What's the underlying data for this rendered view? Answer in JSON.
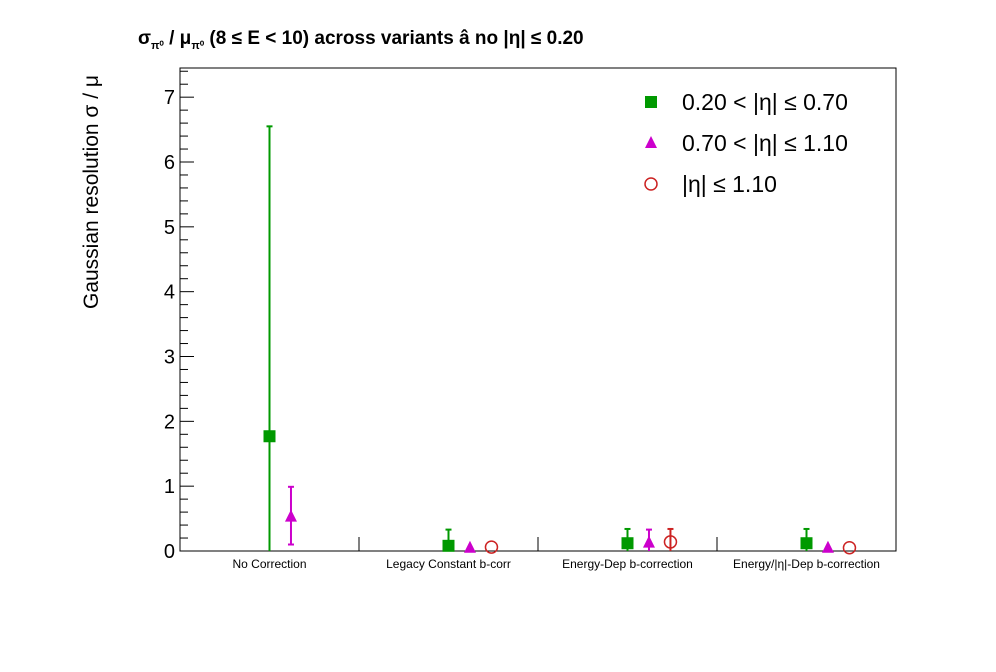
{
  "title": {
    "main": "σ",
    "sub1": "π⁰",
    "slash": " / μ",
    "sub2": "π⁰",
    "rest": " (8 ≤ E < 10) across variants  â  no |η| ≤ 0.20"
  },
  "colors": {
    "series1": "#009900",
    "series2": "#cc00cc",
    "series3": "#cc2222",
    "axis": "#000000"
  },
  "chart_data": {
    "type": "scatter",
    "title": "σπ⁰ / μπ⁰ (8 ≤ E < 10) across variants  â  no |η| ≤ 0.20",
    "xlabel": "",
    "ylabel": "Gaussian resolution  σ / μ",
    "ylim": [
      0,
      7.45
    ],
    "yticks": [
      "0",
      "1",
      "2",
      "3",
      "4",
      "5",
      "6",
      "7"
    ],
    "categories": [
      "No Correction",
      "Legacy Constant b-corr",
      "Energy-Dep b-correction",
      "Energy/|η|-Dep b-correction"
    ],
    "legend_position": "top-right",
    "grid": false,
    "series": [
      {
        "name": "0.20 < |η| ≤ 0.70",
        "marker": "square",
        "values": [
          1.77,
          0.08,
          0.12,
          0.12
        ],
        "err_low": [
          1.77,
          0.08,
          0.12,
          0.12
        ],
        "err_high": [
          4.78,
          0.25,
          0.22,
          0.22
        ]
      },
      {
        "name": "0.70 < |η| ≤ 1.10",
        "marker": "triangle",
        "values": [
          0.53,
          0.05,
          0.13,
          0.05
        ],
        "err_low": [
          0.43,
          0.0,
          0.13,
          0.0
        ],
        "err_high": [
          0.46,
          0.0,
          0.2,
          0.0
        ]
      },
      {
        "name": "|η| ≤ 1.10",
        "marker": "circle-open",
        "values": [
          null,
          0.06,
          0.14,
          0.05
        ],
        "err_low": [
          null,
          0.0,
          0.14,
          0.0
        ],
        "err_high": [
          null,
          0.0,
          0.2,
          0.0
        ]
      }
    ]
  }
}
